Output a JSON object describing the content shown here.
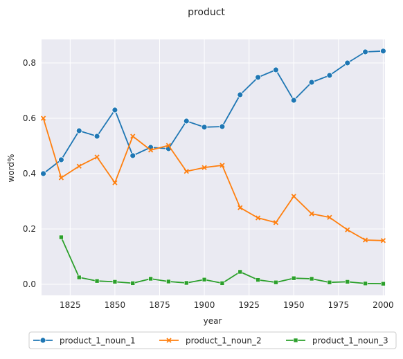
{
  "chart_data": {
    "type": "line",
    "title": "product",
    "xlabel": "year",
    "ylabel": "word%",
    "xlim": [
      1809,
      2001
    ],
    "ylim": [
      -0.04,
      0.885
    ],
    "xticks": [
      1825,
      1850,
      1875,
      1900,
      1925,
      1950,
      1975,
      2000
    ],
    "yticks": [
      0.0,
      0.2,
      0.4,
      0.6,
      0.8
    ],
    "grid": true,
    "legend_position": "bottom",
    "series": [
      {
        "name": "product_1_noun_1",
        "color": "#1f77b4",
        "marker": "circle",
        "x": [
          1810,
          1820,
          1830,
          1840,
          1850,
          1860,
          1870,
          1880,
          1890,
          1900,
          1910,
          1920,
          1930,
          1940,
          1950,
          1960,
          1970,
          1980,
          1990,
          2000
        ],
        "y": [
          0.4,
          0.45,
          0.555,
          0.535,
          0.63,
          0.465,
          0.495,
          0.49,
          0.59,
          0.568,
          0.57,
          0.685,
          0.748,
          0.775,
          0.665,
          0.73,
          0.755,
          0.8,
          0.84,
          0.843
        ]
      },
      {
        "name": "product_1_noun_2",
        "color": "#ff7f0e",
        "marker": "x",
        "x": [
          1810,
          1820,
          1830,
          1840,
          1850,
          1860,
          1870,
          1880,
          1890,
          1900,
          1910,
          1920,
          1930,
          1940,
          1950,
          1960,
          1970,
          1980,
          1990,
          2000
        ],
        "y": [
          0.6,
          0.385,
          0.427,
          0.46,
          0.367,
          0.535,
          0.485,
          0.502,
          0.408,
          0.422,
          0.43,
          0.277,
          0.24,
          0.223,
          0.318,
          0.255,
          0.242,
          0.197,
          0.16,
          0.158
        ]
      },
      {
        "name": "product_1_noun_3",
        "color": "#2ca02c",
        "marker": "square",
        "x": [
          1820,
          1830,
          1840,
          1850,
          1860,
          1870,
          1880,
          1890,
          1900,
          1910,
          1920,
          1930,
          1940,
          1950,
          1960,
          1970,
          1980,
          1990,
          2000
        ],
        "y": [
          0.17,
          0.025,
          0.012,
          0.009,
          0.004,
          0.02,
          0.01,
          0.005,
          0.017,
          0.004,
          0.045,
          0.016,
          0.007,
          0.022,
          0.02,
          0.007,
          0.009,
          0.003,
          0.002
        ]
      }
    ]
  }
}
